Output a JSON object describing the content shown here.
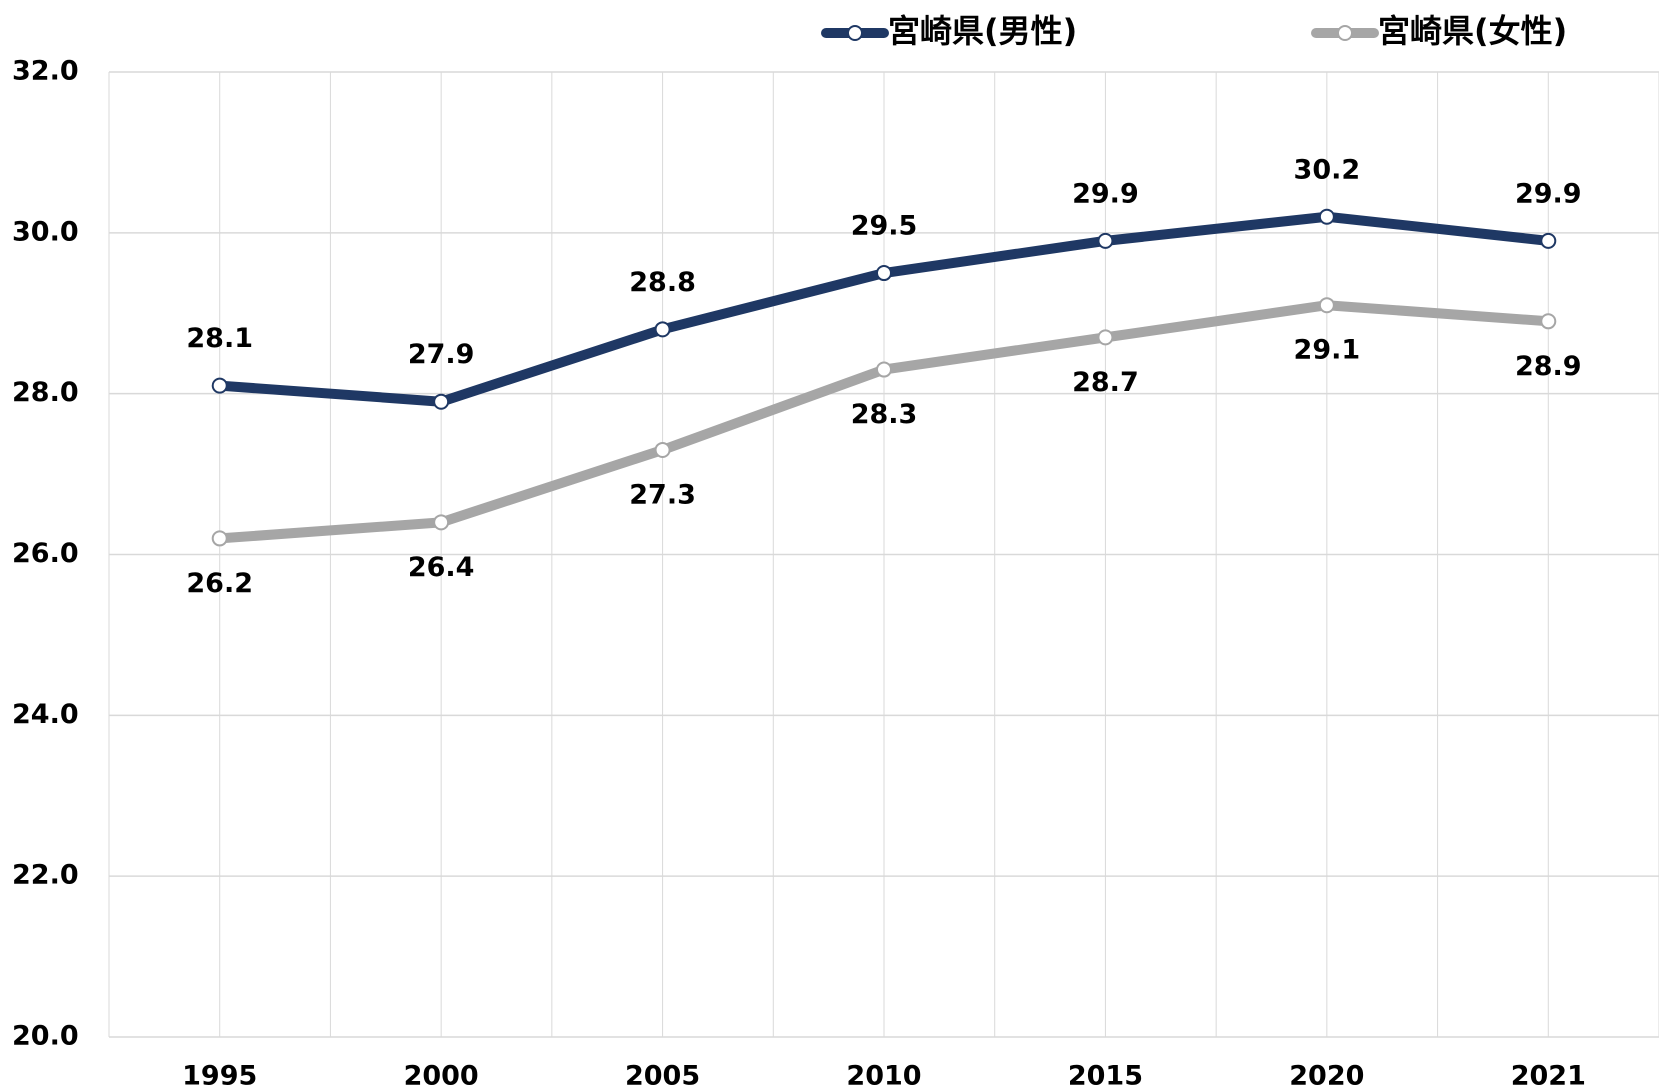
{
  "chart_data": {
    "type": "line",
    "categories": [
      "1995",
      "2000",
      "2005",
      "2010",
      "2015",
      "2020",
      "2021"
    ],
    "series": [
      {
        "name": "宮崎県(男性)",
        "color": "#1f3864",
        "values": [
          28.1,
          27.9,
          28.8,
          29.5,
          29.9,
          30.2,
          29.9
        ]
      },
      {
        "name": "宮崎県(女性)",
        "color": "#a6a6a6",
        "values": [
          26.2,
          26.4,
          27.3,
          28.3,
          28.7,
          29.1,
          28.9
        ]
      }
    ],
    "ylim": [
      20,
      32
    ],
    "yticks": [
      {
        "value": 20,
        "label": "20.0"
      },
      {
        "value": 22,
        "label": "22.0"
      },
      {
        "value": 24,
        "label": "24.0"
      },
      {
        "value": 26,
        "label": "26.0"
      },
      {
        "value": 28,
        "label": "28.0"
      },
      {
        "value": 30,
        "label": "30.0"
      },
      {
        "value": 32,
        "label": "32.0"
      }
    ],
    "grid": true,
    "legend": "top"
  }
}
